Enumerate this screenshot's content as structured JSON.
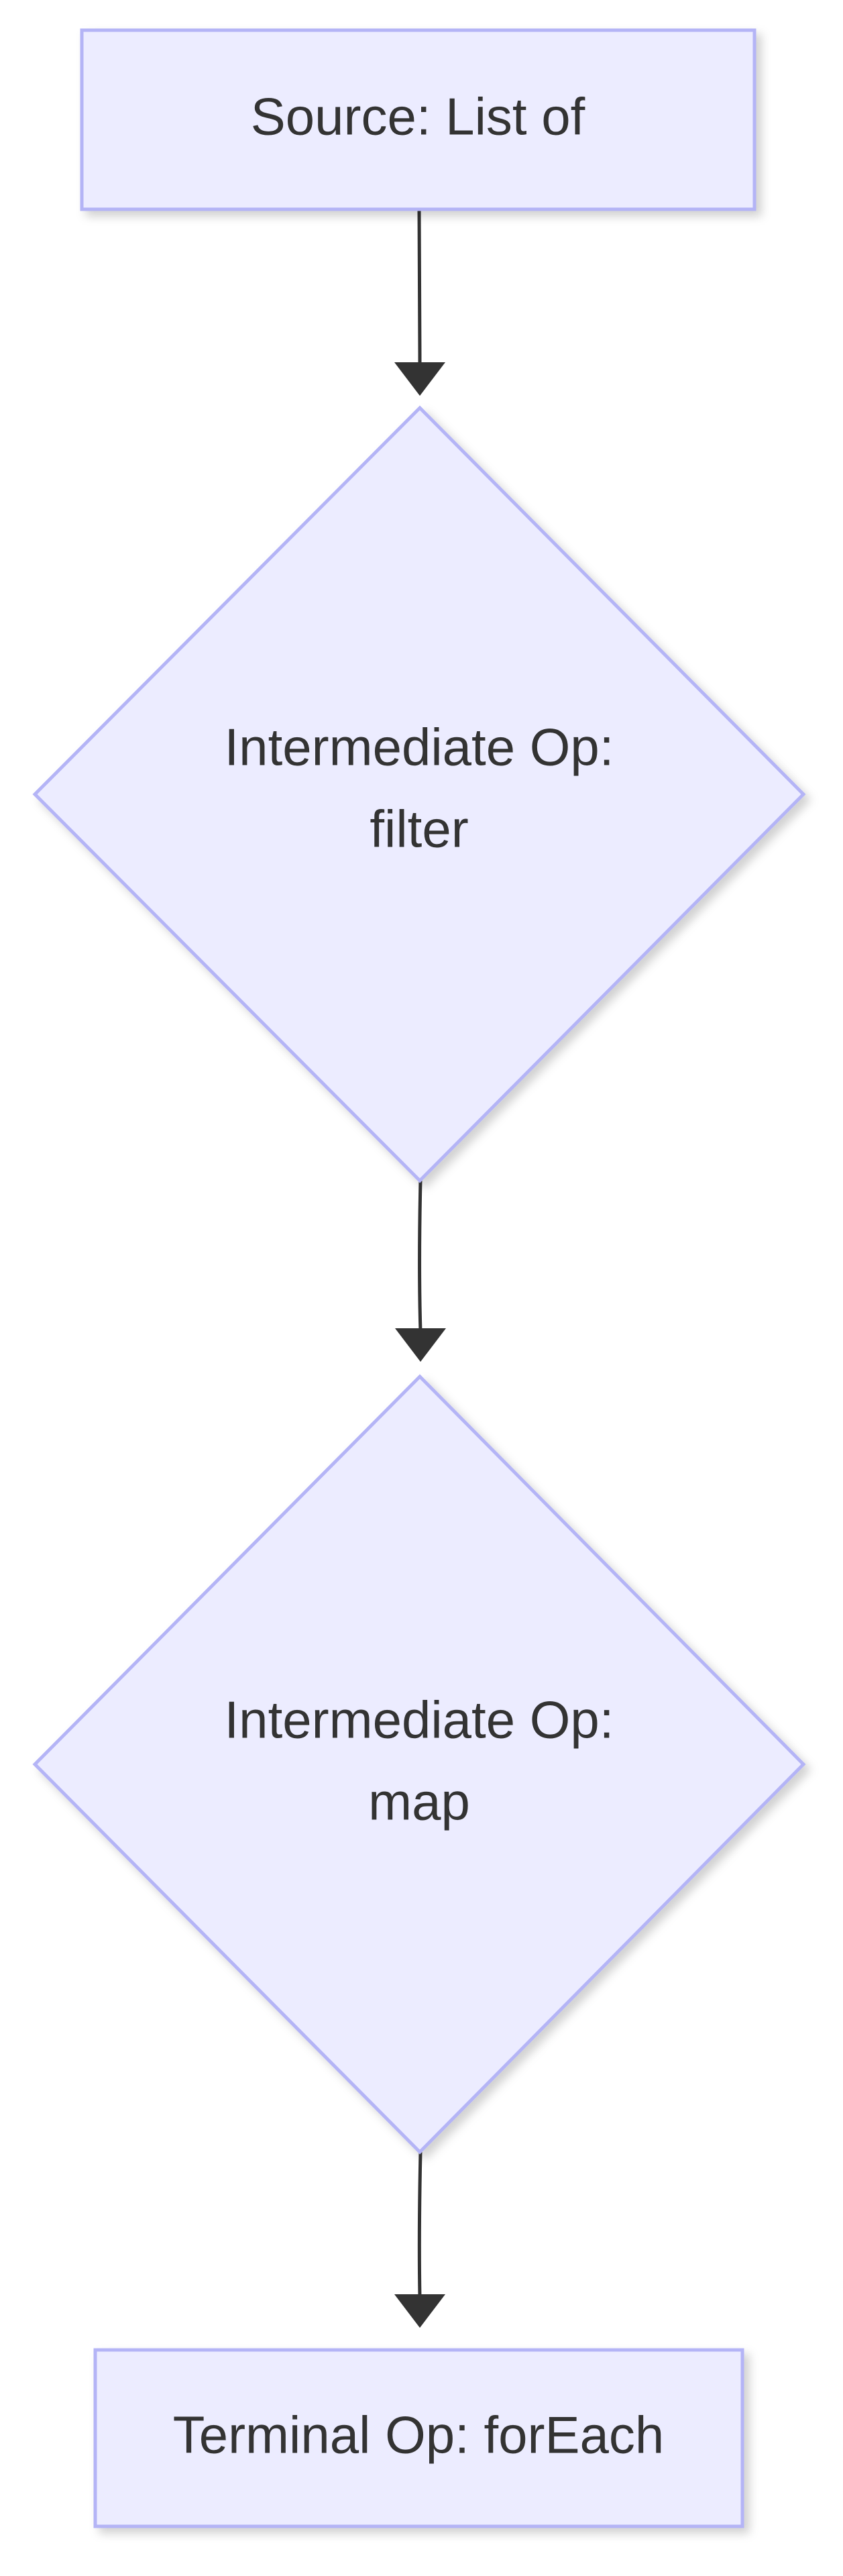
{
  "diagram": {
    "type": "flowchart",
    "direction": "top-to-bottom",
    "colors": {
      "node_fill": "#ECECFF",
      "node_stroke": "#B4B4F6",
      "edge": "#333333",
      "text": "#333333",
      "background": "#FFFFFF"
    },
    "nodes": {
      "source": {
        "shape": "rectangle",
        "label": "Source: List of"
      },
      "filter": {
        "shape": "diamond",
        "label_line1": "Intermediate Op:",
        "label_line2": "filter"
      },
      "map": {
        "shape": "diamond",
        "label_line1": "Intermediate Op:",
        "label_line2": "map"
      },
      "terminal": {
        "shape": "rectangle",
        "label": "Terminal Op: forEach"
      }
    },
    "edges": [
      {
        "from": "source",
        "to": "filter"
      },
      {
        "from": "filter",
        "to": "map"
      },
      {
        "from": "map",
        "to": "terminal"
      }
    ]
  }
}
